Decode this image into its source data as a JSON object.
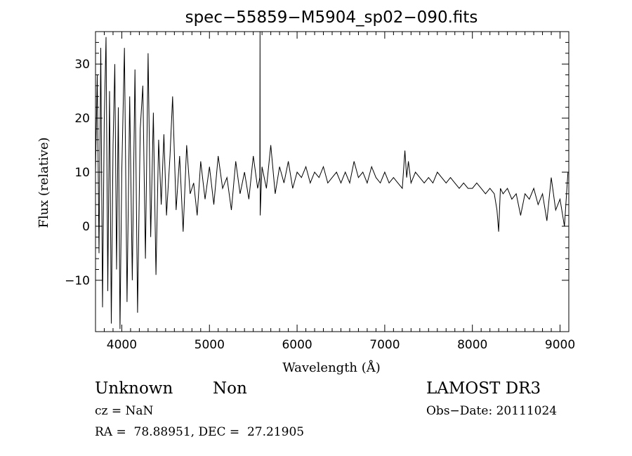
{
  "chart_data": {
    "type": "line",
    "title": "spec−55859−M5904_sp02−090.fits",
    "xlabel": "Wavelength (Å)",
    "ylabel": "Flux (relative)",
    "xlim": [
      3700,
      9100
    ],
    "ylim": [
      -19.5,
      36
    ],
    "xticks": [
      4000,
      5000,
      6000,
      7000,
      8000,
      9000
    ],
    "yticks": [
      -10,
      0,
      10,
      20,
      30
    ],
    "xtick_labels": [
      "4000",
      "5000",
      "6000",
      "7000",
      "8000",
      "9000"
    ],
    "ytick_labels": [
      "−10",
      "0",
      "10",
      "20",
      "30"
    ],
    "grid": false,
    "series": [
      {
        "name": "flux",
        "x": [
          3700,
          3720,
          3740,
          3760,
          3780,
          3800,
          3820,
          3840,
          3860,
          3880,
          3900,
          3920,
          3940,
          3960,
          3980,
          4000,
          4030,
          4060,
          4090,
          4120,
          4150,
          4180,
          4210,
          4240,
          4270,
          4300,
          4330,
          4360,
          4390,
          4420,
          4450,
          4480,
          4510,
          4550,
          4580,
          4620,
          4660,
          4700,
          4740,
          4780,
          4820,
          4860,
          4900,
          4950,
          5000,
          5050,
          5100,
          5150,
          5200,
          5250,
          5300,
          5350,
          5400,
          5450,
          5500,
          5550,
          5575,
          5577,
          5579,
          5600,
          5650,
          5700,
          5750,
          5800,
          5850,
          5900,
          5950,
          6000,
          6050,
          6100,
          6150,
          6200,
          6250,
          6300,
          6350,
          6400,
          6450,
          6500,
          6550,
          6600,
          6650,
          6700,
          6750,
          6800,
          6850,
          6900,
          6950,
          7000,
          7050,
          7100,
          7150,
          7200,
          7230,
          7250,
          7270,
          7300,
          7350,
          7400,
          7450,
          7500,
          7550,
          7600,
          7650,
          7700,
          7750,
          7800,
          7850,
          7900,
          7950,
          8000,
          8050,
          8100,
          8150,
          8200,
          8250,
          8280,
          8300,
          8320,
          8350,
          8400,
          8450,
          8500,
          8550,
          8600,
          8650,
          8700,
          8750,
          8800,
          8850,
          8900,
          8950,
          9000,
          9050,
          9090
        ],
        "values": [
          10,
          28,
          -5,
          33,
          -15,
          20,
          35,
          -12,
          25,
          -18,
          15,
          30,
          -8,
          22,
          -19,
          10,
          33,
          -14,
          24,
          -10,
          29,
          -16,
          18,
          26,
          -6,
          32,
          -2,
          21,
          -9,
          16,
          4,
          17,
          2,
          13,
          24,
          3,
          13,
          -1,
          15,
          6,
          8,
          2,
          12,
          5,
          11,
          4,
          13,
          7,
          9,
          3,
          12,
          6,
          10,
          5,
          13,
          7,
          9,
          36,
          2,
          11,
          7,
          15,
          6,
          11,
          8,
          12,
          7,
          10,
          9,
          11,
          8,
          10,
          9,
          11,
          8,
          9,
          10,
          8,
          10,
          8,
          12,
          9,
          10,
          8,
          11,
          9,
          8,
          10,
          8,
          9,
          8,
          7,
          14,
          9,
          12,
          8,
          10,
          9,
          8,
          9,
          8,
          10,
          9,
          8,
          9,
          8,
          7,
          8,
          7,
          7,
          8,
          7,
          6,
          7,
          6,
          3,
          -1,
          7,
          6,
          7,
          5,
          6,
          2,
          6,
          5,
          7,
          4,
          6,
          1,
          9,
          3,
          5,
          0,
          10
        ]
      }
    ],
    "annotations": {
      "object_class": "Unknown",
      "subclass": "Non",
      "cz": "cz = NaN",
      "coords": "RA =  78.88951, DEC =  27.21905",
      "survey": "LAMOST DR3",
      "obs_date": "Obs−Date: 20111024"
    }
  }
}
